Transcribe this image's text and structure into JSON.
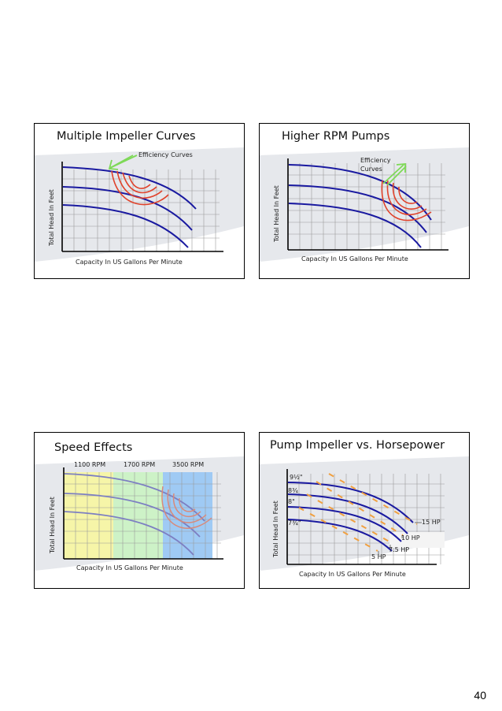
{
  "page": {
    "number": "40"
  },
  "slides": [
    {
      "title": "Multiple Impeller Curves",
      "annotation": "Efficiency Curves",
      "xlabel": "Capacity In US Gallons Per Minute",
      "ylabel": "Total Head In Feet"
    },
    {
      "title": "Higher RPM Pumps",
      "annotation_line1": "Efficiency",
      "annotation_line2": "Curves",
      "xlabel": "Capacity In US Gallons Per Minute",
      "ylabel": "Total Head In Feet"
    },
    {
      "title": "Speed Effects",
      "rpm_labels": [
        "1100 RPM",
        "1700 RPM",
        "3500 RPM"
      ],
      "xlabel": "Capacity In US Gallons Per Minute",
      "ylabel": "Total Head In Feet"
    },
    {
      "title": "Pump Impeller vs. Horsepower",
      "impeller_labels": [
        "9½\"",
        "8¾",
        "8\"",
        "7¾\""
      ],
      "hp_labels": [
        "15 HP",
        "10 HP",
        "7.5 HP",
        "5 HP"
      ],
      "xlabel": "Capacity In US Gallons Per Minute",
      "ylabel": "Total Head In Feet"
    }
  ],
  "colors": {
    "pump_curve": "#1a1aa0",
    "efficiency_curve": "#e0432c",
    "efficiency_arrow": "#7ed957",
    "hp_line": "#f0a040",
    "zone_yellow": "#f6f5a8",
    "zone_green": "#cdf2c7",
    "zone_blue": "#9fcaf4"
  }
}
